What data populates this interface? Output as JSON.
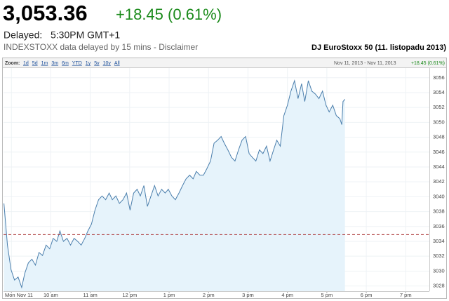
{
  "header": {
    "price": "3,053.36",
    "change": "+18.45 (0.61%)",
    "delayed_label": "Delayed:",
    "time": "5:30PM GMT+1",
    "source_note": "INDEXSTOXX data delayed by 15 mins - Disclaimer",
    "index_name": "DJ EuroStoxx 50 (11. listopadu 2013)"
  },
  "toolbar": {
    "zoom_label": "Zoom:",
    "zoom_options": [
      "1d",
      "5d",
      "1m",
      "3m",
      "6m",
      "YTD",
      "1y",
      "5y",
      "10y",
      "All"
    ],
    "date_range": "Nov 11, 2013 - Nov 11, 2013",
    "range_change": "+18.45 (0.61%)"
  },
  "chart_data": {
    "type": "area",
    "color": "#4a7eac",
    "fill": "#e6f3fb",
    "grid": true,
    "xlim": [
      8.8,
      19.6
    ],
    "ylim": [
      3027.3,
      3057.3
    ],
    "xticks": [
      {
        "value": 9,
        "label": "Mon Nov 11"
      },
      {
        "value": 10,
        "label": "10 am"
      },
      {
        "value": 11,
        "label": "11 am"
      },
      {
        "value": 12,
        "label": "12 pm"
      },
      {
        "value": 13,
        "label": "1 pm"
      },
      {
        "value": 14,
        "label": "2 pm"
      },
      {
        "value": 15,
        "label": "3 pm"
      },
      {
        "value": 16,
        "label": "4 pm"
      },
      {
        "value": 17,
        "label": "5 pm"
      },
      {
        "value": 18,
        "label": "6 pm"
      },
      {
        "value": 19,
        "label": "7 pm"
      }
    ],
    "yticks": [
      3028,
      3030,
      3032,
      3034,
      3036,
      3038,
      3040,
      3042,
      3044,
      3046,
      3048,
      3050,
      3052,
      3054,
      3056
    ],
    "reference_line": 3034.91,
    "reference_color": "#a33",
    "x": [
      8.81,
      8.9,
      8.99,
      9.08,
      9.17,
      9.26,
      9.34,
      9.43,
      9.52,
      9.61,
      9.7,
      9.79,
      9.88,
      9.97,
      10.06,
      10.15,
      10.23,
      10.32,
      10.41,
      10.5,
      10.59,
      10.68,
      10.77,
      10.86,
      10.94,
      11.03,
      11.12,
      11.21,
      11.3,
      11.39,
      11.48,
      11.56,
      11.65,
      11.74,
      11.83,
      11.92,
      12.01,
      12.1,
      12.19,
      12.27,
      12.36,
      12.45,
      12.54,
      12.63,
      12.72,
      12.81,
      12.9,
      12.98,
      13.07,
      13.16,
      13.25,
      13.34,
      13.43,
      13.52,
      13.61,
      13.69,
      13.78,
      13.87,
      13.96,
      14.05,
      14.14,
      14.23,
      14.32,
      14.4,
      14.49,
      14.58,
      14.67,
      14.76,
      14.85,
      14.94,
      15.03,
      15.11,
      15.2,
      15.29,
      15.38,
      15.47,
      15.56,
      15.65,
      15.73,
      15.82,
      15.91,
      16.0,
      16.09,
      16.18,
      16.27,
      16.36,
      16.44,
      16.53,
      16.62,
      16.71,
      16.8,
      16.89,
      16.98,
      17.06,
      17.15,
      17.24,
      17.33,
      17.38,
      17.41,
      17.46
    ],
    "values": [
      3039.1,
      3033.5,
      3030.2,
      3028.8,
      3029.2,
      3027.8,
      3029.7,
      3031.1,
      3031.6,
      3030.8,
      3032.5,
      3032.1,
      3033.5,
      3033.0,
      3034.4,
      3034.0,
      3035.4,
      3034.0,
      3034.4,
      3033.5,
      3034.4,
      3034.0,
      3033.5,
      3034.4,
      3035.4,
      3036.3,
      3038.2,
      3039.6,
      3040.1,
      3039.6,
      3040.5,
      3039.6,
      3040.1,
      3039.1,
      3039.6,
      3040.5,
      3038.2,
      3040.5,
      3041.0,
      3040.1,
      3041.5,
      3038.7,
      3040.1,
      3041.5,
      3040.1,
      3041.0,
      3040.5,
      3041.0,
      3040.1,
      3039.6,
      3040.5,
      3041.5,
      3042.4,
      3042.9,
      3042.4,
      3043.4,
      3042.9,
      3042.9,
      3043.8,
      3044.8,
      3047.2,
      3047.6,
      3048.1,
      3047.2,
      3046.3,
      3045.3,
      3044.8,
      3046.3,
      3047.6,
      3048.1,
      3045.8,
      3045.3,
      3044.8,
      3046.3,
      3045.8,
      3046.8,
      3044.8,
      3046.3,
      3047.6,
      3046.8,
      3050.9,
      3052.3,
      3054.2,
      3055.6,
      3053.2,
      3055.2,
      3052.8,
      3055.6,
      3054.2,
      3053.8,
      3053.2,
      3054.2,
      3052.3,
      3051.4,
      3052.3,
      3050.9,
      3050.5,
      3049.7,
      3052.8,
      3053.1
    ]
  }
}
